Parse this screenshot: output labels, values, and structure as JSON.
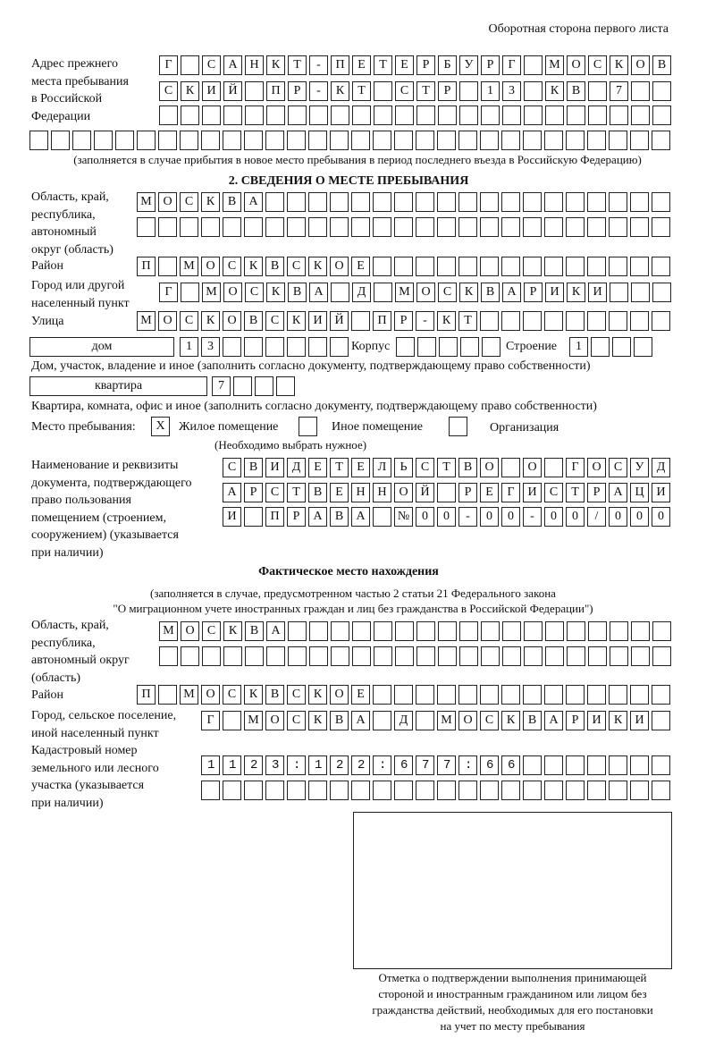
{
  "header": {
    "page_side": "Оборотная сторона первого листа"
  },
  "prev_address": {
    "label": "Адрес прежнего\nместа пребывания\nв Российской\nФедерации",
    "lines": [
      "Г САНКТ-ПЕТЕРБУРГ МОСКОВ",
      "СКИЙ ПР-КТ СТР 13 КВ 7",
      "",
      ""
    ],
    "note": "(заполняется в случае прибытия в новое место пребывания в период последнего въезда в Российскую Федерацию)"
  },
  "section2": {
    "title": "2. СВЕДЕНИЯ О МЕСТЕ ПРЕБЫВАНИЯ",
    "region_label": "Область, край,\nреспублика,\nавтономный\nокруг (область)",
    "region": [
      "МОСКВА",
      ""
    ],
    "district_label": "Район",
    "district": "П МОСКВСКОЕ",
    "city_label": "Город или другой\nнаселенный пункт",
    "city": "Г МОСКВА Д МОСКВАРИКИ",
    "street_label": "Улица",
    "street": "МОСКОВСКИЙ ПР-КТ",
    "house_type": "дом",
    "house": "13",
    "korpus_label": "Корпус",
    "korpus": "",
    "stroenie_label": "Строение",
    "stroenie": "1",
    "house_note": "Дом, участок, владение и иное (заполнить согласно документу, подтверждающему право собственности)",
    "flat_type": "квартира",
    "flat": "7",
    "flat_note": "Квартира, комната, офис и иное (заполнить согласно документу, подтверждающему право собственности)",
    "stay_label": "Место пребывания:",
    "stay_options": [
      {
        "label": "Жилое помещение",
        "mark": "Х"
      },
      {
        "label": "Иное помещение",
        "mark": ""
      },
      {
        "label": "Организация",
        "mark": ""
      }
    ],
    "stay_note": "(Необходимо выбрать нужное)",
    "doc_label": "Наименование и реквизиты\nдокумента, подтверждающего\nправо пользования\nпомещением (строением,\nсооружением) (указывается\nпри наличии)",
    "doc": [
      "СВИДЕТЕЛЬСТВО О ГОСУД",
      "АРСТВЕННОЙ РЕГИСТРАЦИ",
      "И ПРАВА №00-00-00/000"
    ]
  },
  "actual": {
    "title": "Фактическое место нахождения",
    "note1": "(заполняется в случае, предусмотренном частью 2 статьи 21 Федерального закона",
    "note2": "\"О миграционном учете иностранных граждан и лиц без гражданства в Российской Федерации\")",
    "region_label": "Область, край,\nреспублика,\nавтономный округ\n(область)",
    "region": [
      "МОСКВА",
      ""
    ],
    "district_label": "Район",
    "district": "П МОСКВСКОЕ",
    "city_label": "Город, сельское поселение,\nиной населенный пункт",
    "city": "Г МОСКВА Д МОСКВАРИКИ",
    "cadastre_label": "Кадастровый номер\nземельного или лесного\nучастка (указывается\nпри наличии)",
    "cadastre": [
      "1123:122:677:66",
      ""
    ]
  },
  "confirmation": {
    "caption": "Отметка о подтверждении выполнения принимающей\nстороной и иностранным гражданином или лицом без\nгражданства действий, необходимых для его постановки\nна учет по месту пребывания"
  }
}
